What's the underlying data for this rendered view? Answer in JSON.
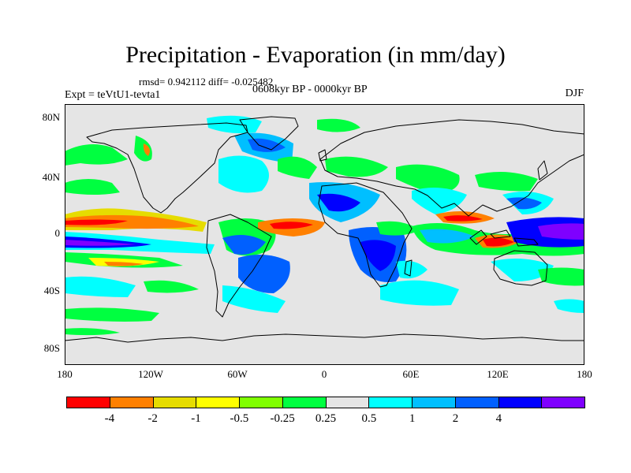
{
  "title": "Precipitation - Evaporation (in mm/day)",
  "stats": "rmsd= 0.942112 diff= -0.025482",
  "period": "0608kyr BP - 0000kyr BP",
  "experiment": "Expt = teVtU1-tevta1",
  "season": "DJF",
  "map": {
    "background": "#e5e5e5",
    "lat_ticks": [
      "80N",
      "40N",
      "0",
      "40S",
      "80S"
    ],
    "lon_ticks": [
      "180",
      "120W",
      "60W",
      "0",
      "60E",
      "120E",
      "180"
    ]
  },
  "colorbar": {
    "colors": [
      "#ff0000",
      "#ff8000",
      "#e6dc00",
      "#ffff00",
      "#80ff00",
      "#00ff40",
      "#e5e5e5",
      "#00ffff",
      "#00bfff",
      "#0060ff",
      "#0000ff",
      "#7f00ff"
    ],
    "labels": [
      "-4",
      "-2",
      "-1",
      "-0.5",
      "-0.25",
      "0.25",
      "0.5",
      "1",
      "2",
      "4"
    ]
  }
}
